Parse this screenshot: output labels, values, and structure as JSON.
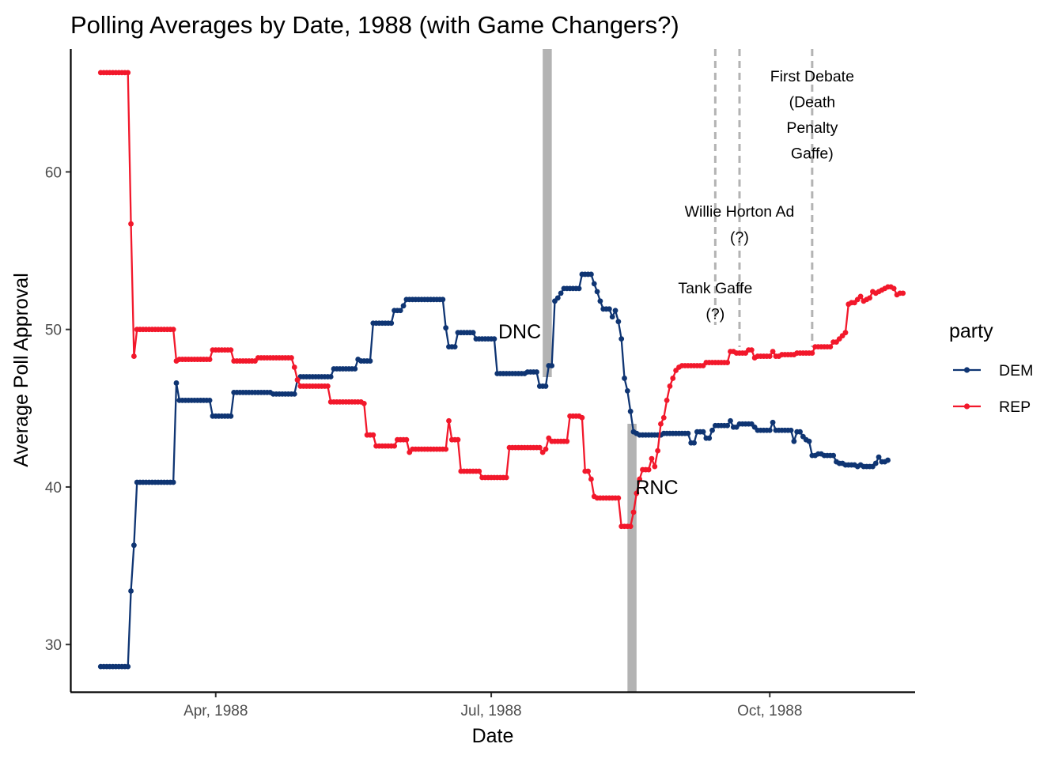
{
  "chart_data": {
    "type": "line",
    "title": "Polling Averages by Date, 1988 (with Game Changers?)",
    "xlabel": "Date",
    "ylabel": "Average Poll Approval",
    "x_ticks": [
      {
        "date": "1988-04-01",
        "label": "Apr, 1988"
      },
      {
        "date": "1988-07-01",
        "label": "Jul, 1988"
      },
      {
        "date": "1988-10-01",
        "label": "Oct, 1988"
      }
    ],
    "y_ticks": [
      30,
      40,
      50,
      60
    ],
    "xlim": [
      "1988-02-13",
      "1988-11-18"
    ],
    "ylim": [
      27,
      67.8
    ],
    "legend": {
      "title": "party",
      "position": "right"
    },
    "conventions": [
      {
        "label": "DNC",
        "start": "1988-07-18",
        "end": "1988-07-21"
      },
      {
        "label": "RNC",
        "start": "1988-08-15",
        "end": "1988-08-18"
      }
    ],
    "events": [
      {
        "date": "1988-09-13",
        "lines": [
          "Tank Gaffe",
          "(?)"
        ]
      },
      {
        "date": "1988-09-21",
        "lines": [
          "Willie Horton Ad",
          "(?)"
        ]
      },
      {
        "date": "1988-10-15",
        "lines": [
          "First Debate",
          "(Death",
          "Penalty",
          "Gaffe)"
        ]
      }
    ],
    "series": [
      {
        "name": "DEM",
        "color": "#0F3573",
        "knots": [
          [
            "1988-02-23",
            28.6
          ],
          [
            "1988-03-03",
            28.6
          ],
          [
            "1988-03-04",
            33.4
          ],
          [
            "1988-03-05",
            36.3
          ],
          [
            "1988-03-06",
            40.3
          ],
          [
            "1988-03-18",
            40.3
          ],
          [
            "1988-03-19",
            46.6
          ],
          [
            "1988-03-20",
            45.5
          ],
          [
            "1988-03-30",
            45.5
          ],
          [
            "1988-03-31",
            44.5
          ],
          [
            "1988-04-06",
            44.5
          ],
          [
            "1988-04-07",
            46.0
          ],
          [
            "1988-04-19",
            46.0
          ],
          [
            "1988-04-20",
            45.9
          ],
          [
            "1988-04-27",
            45.9
          ],
          [
            "1988-04-28",
            46.8
          ],
          [
            "1988-04-29",
            47.0
          ],
          [
            "1988-05-09",
            47.0
          ],
          [
            "1988-05-10",
            47.5
          ],
          [
            "1988-05-17",
            47.5
          ],
          [
            "1988-05-18",
            48.1
          ],
          [
            "1988-05-19",
            48.0
          ],
          [
            "1988-05-22",
            48.0
          ],
          [
            "1988-05-23",
            50.4
          ],
          [
            "1988-05-29",
            50.4
          ],
          [
            "1988-05-30",
            51.2
          ],
          [
            "1988-06-01",
            51.2
          ],
          [
            "1988-06-02",
            51.5
          ],
          [
            "1988-06-03",
            51.9
          ],
          [
            "1988-06-15",
            51.9
          ],
          [
            "1988-06-16",
            50.1
          ],
          [
            "1988-06-17",
            48.9
          ],
          [
            "1988-06-19",
            48.9
          ],
          [
            "1988-06-20",
            49.8
          ],
          [
            "1988-06-25",
            49.8
          ],
          [
            "1988-06-26",
            49.4
          ],
          [
            "1988-07-02",
            49.4
          ],
          [
            "1988-07-03",
            47.2
          ],
          [
            "1988-07-12",
            47.2
          ],
          [
            "1988-07-13",
            47.3
          ],
          [
            "1988-07-16",
            47.3
          ],
          [
            "1988-07-17",
            46.4
          ],
          [
            "1988-07-19",
            46.4
          ],
          [
            "1988-07-20",
            47.7
          ],
          [
            "1988-07-21",
            47.7
          ],
          [
            "1988-07-22",
            51.8
          ],
          [
            "1988-07-23",
            52.0
          ],
          [
            "1988-07-24",
            52.3
          ],
          [
            "1988-07-25",
            52.6
          ],
          [
            "1988-07-30",
            52.6
          ],
          [
            "1988-07-31",
            53.5
          ],
          [
            "1988-08-03",
            53.5
          ],
          [
            "1988-08-04",
            52.9
          ],
          [
            "1988-08-05",
            52.4
          ],
          [
            "1988-08-06",
            51.8
          ],
          [
            "1988-08-07",
            51.3
          ],
          [
            "1988-08-09",
            51.3
          ],
          [
            "1988-08-10",
            50.8
          ],
          [
            "1988-08-11",
            51.2
          ],
          [
            "1988-08-12",
            50.5
          ],
          [
            "1988-08-13",
            49.4
          ],
          [
            "1988-08-14",
            46.9
          ],
          [
            "1988-08-15",
            46.1
          ],
          [
            "1988-08-16",
            44.8
          ],
          [
            "1988-08-17",
            43.5
          ],
          [
            "1988-08-18",
            43.4
          ],
          [
            "1988-08-19",
            43.3
          ],
          [
            "1988-08-26",
            43.3
          ],
          [
            "1988-08-27",
            43.4
          ],
          [
            "1988-09-04",
            43.4
          ],
          [
            "1988-09-05",
            42.8
          ],
          [
            "1988-09-06",
            42.8
          ],
          [
            "1988-09-07",
            43.5
          ],
          [
            "1988-09-09",
            43.5
          ],
          [
            "1988-09-10",
            43.1
          ],
          [
            "1988-09-11",
            43.1
          ],
          [
            "1988-09-12",
            43.6
          ],
          [
            "1988-09-13",
            43.9
          ],
          [
            "1988-09-17",
            43.9
          ],
          [
            "1988-09-18",
            44.2
          ],
          [
            "1988-09-19",
            43.8
          ],
          [
            "1988-09-20",
            43.8
          ],
          [
            "1988-09-21",
            44.0
          ],
          [
            "1988-09-25",
            44.0
          ],
          [
            "1988-09-26",
            43.8
          ],
          [
            "1988-09-27",
            43.6
          ],
          [
            "1988-10-01",
            43.6
          ],
          [
            "1988-10-02",
            44.1
          ],
          [
            "1988-10-03",
            43.6
          ],
          [
            "1988-10-08",
            43.6
          ],
          [
            "1988-10-09",
            42.9
          ],
          [
            "1988-10-10",
            43.5
          ],
          [
            "1988-10-11",
            43.5
          ],
          [
            "1988-10-12",
            43.2
          ],
          [
            "1988-10-13",
            43.0
          ],
          [
            "1988-10-14",
            42.9
          ],
          [
            "1988-10-15",
            42.0
          ],
          [
            "1988-10-16",
            42.0
          ],
          [
            "1988-10-17",
            42.1
          ],
          [
            "1988-10-19",
            42.0
          ],
          [
            "1988-10-22",
            42.0
          ],
          [
            "1988-10-23",
            41.6
          ],
          [
            "1988-10-24",
            41.5
          ],
          [
            "1988-10-26",
            41.4
          ],
          [
            "1988-10-29",
            41.4
          ],
          [
            "1988-10-30",
            41.3
          ],
          [
            "1988-10-31",
            41.4
          ],
          [
            "1988-11-01",
            41.3
          ],
          [
            "1988-11-04",
            41.3
          ],
          [
            "1988-11-05",
            41.5
          ],
          [
            "1988-11-06",
            41.9
          ],
          [
            "1988-11-07",
            41.6
          ],
          [
            "1988-11-09",
            41.7
          ]
        ]
      },
      {
        "name": "REP",
        "color": "#F2182B",
        "knots": [
          [
            "1988-02-23",
            66.3
          ],
          [
            "1988-03-03",
            66.3
          ],
          [
            "1988-03-04",
            56.7
          ],
          [
            "1988-03-05",
            48.3
          ],
          [
            "1988-03-06",
            50.0
          ],
          [
            "1988-03-18",
            50.0
          ],
          [
            "1988-03-19",
            48.0
          ],
          [
            "1988-03-20",
            48.1
          ],
          [
            "1988-03-30",
            48.1
          ],
          [
            "1988-03-31",
            48.7
          ],
          [
            "1988-04-06",
            48.7
          ],
          [
            "1988-04-07",
            48.0
          ],
          [
            "1988-04-14",
            48.0
          ],
          [
            "1988-04-15",
            48.2
          ],
          [
            "1988-04-26",
            48.2
          ],
          [
            "1988-04-27",
            47.6
          ],
          [
            "1988-04-28",
            46.8
          ],
          [
            "1988-04-29",
            46.4
          ],
          [
            "1988-05-08",
            46.4
          ],
          [
            "1988-05-09",
            45.4
          ],
          [
            "1988-05-19",
            45.4
          ],
          [
            "1988-05-20",
            45.3
          ],
          [
            "1988-05-21",
            43.3
          ],
          [
            "1988-05-23",
            43.3
          ],
          [
            "1988-05-24",
            42.6
          ],
          [
            "1988-05-30",
            42.6
          ],
          [
            "1988-05-31",
            43.0
          ],
          [
            "1988-06-03",
            43.0
          ],
          [
            "1988-06-04",
            42.2
          ],
          [
            "1988-06-05",
            42.4
          ],
          [
            "1988-06-16",
            42.4
          ],
          [
            "1988-06-17",
            44.2
          ],
          [
            "1988-06-18",
            43.0
          ],
          [
            "1988-06-20",
            43.0
          ],
          [
            "1988-06-21",
            41.0
          ],
          [
            "1988-06-27",
            41.0
          ],
          [
            "1988-06-28",
            40.6
          ],
          [
            "1988-07-06",
            40.6
          ],
          [
            "1988-07-07",
            42.5
          ],
          [
            "1988-07-17",
            42.5
          ],
          [
            "1988-07-18",
            42.2
          ],
          [
            "1988-07-19",
            42.4
          ],
          [
            "1988-07-20",
            43.1
          ],
          [
            "1988-07-21",
            42.9
          ],
          [
            "1988-07-26",
            42.9
          ],
          [
            "1988-07-27",
            44.5
          ],
          [
            "1988-07-31",
            44.4
          ],
          [
            "1988-08-01",
            41.0
          ],
          [
            "1988-08-02",
            41.0
          ],
          [
            "1988-08-03",
            40.5
          ],
          [
            "1988-08-04",
            39.4
          ],
          [
            "1988-08-05",
            39.3
          ],
          [
            "1988-08-12",
            39.3
          ],
          [
            "1988-08-13",
            37.5
          ],
          [
            "1988-08-16",
            37.5
          ],
          [
            "1988-08-17",
            38.4
          ],
          [
            "1988-08-18",
            39.6
          ],
          [
            "1988-08-19",
            40.5
          ],
          [
            "1988-08-20",
            41.1
          ],
          [
            "1988-08-22",
            41.1
          ],
          [
            "1988-08-23",
            41.8
          ],
          [
            "1988-08-24",
            41.3
          ],
          [
            "1988-08-25",
            42.3
          ],
          [
            "1988-08-26",
            44.0
          ],
          [
            "1988-08-27",
            44.4
          ],
          [
            "1988-08-28",
            45.5
          ],
          [
            "1988-08-29",
            46.4
          ],
          [
            "1988-08-30",
            46.9
          ],
          [
            "1988-08-31",
            47.4
          ],
          [
            "1988-09-01",
            47.6
          ],
          [
            "1988-09-02",
            47.7
          ],
          [
            "1988-09-09",
            47.7
          ],
          [
            "1988-09-10",
            47.9
          ],
          [
            "1988-09-17",
            47.9
          ],
          [
            "1988-09-18",
            48.6
          ],
          [
            "1988-09-19",
            48.6
          ],
          [
            "1988-09-20",
            48.5
          ],
          [
            "1988-09-23",
            48.5
          ],
          [
            "1988-09-24",
            48.7
          ],
          [
            "1988-09-25",
            48.7
          ],
          [
            "1988-09-26",
            48.2
          ],
          [
            "1988-09-27",
            48.3
          ],
          [
            "1988-10-01",
            48.3
          ],
          [
            "1988-10-02",
            48.6
          ],
          [
            "1988-10-03",
            48.3
          ],
          [
            "1988-10-04",
            48.3
          ],
          [
            "1988-10-05",
            48.4
          ],
          [
            "1988-10-09",
            48.4
          ],
          [
            "1988-10-10",
            48.5
          ],
          [
            "1988-10-15",
            48.5
          ],
          [
            "1988-10-16",
            48.9
          ],
          [
            "1988-10-21",
            48.9
          ],
          [
            "1988-10-22",
            49.2
          ],
          [
            "1988-10-23",
            49.2
          ],
          [
            "1988-10-24",
            49.4
          ],
          [
            "1988-10-25",
            49.6
          ],
          [
            "1988-10-26",
            49.8
          ],
          [
            "1988-10-27",
            51.6
          ],
          [
            "1988-10-28",
            51.7
          ],
          [
            "1988-10-30",
            51.9
          ],
          [
            "1988-10-31",
            52.1
          ],
          [
            "1988-11-01",
            51.8
          ],
          [
            "1988-11-02",
            51.9
          ],
          [
            "1988-11-03",
            52.0
          ],
          [
            "1988-11-04",
            52.4
          ],
          [
            "1988-11-05",
            52.3
          ],
          [
            "1988-11-06",
            52.4
          ],
          [
            "1988-11-07",
            52.5
          ],
          [
            "1988-11-08",
            52.6
          ],
          [
            "1988-11-09",
            52.7
          ],
          [
            "1988-11-10",
            52.7
          ],
          [
            "1988-11-11",
            52.6
          ],
          [
            "1988-11-12",
            52.2
          ],
          [
            "1988-11-13",
            52.3
          ],
          [
            "1988-11-14",
            52.3
          ]
        ]
      }
    ]
  }
}
